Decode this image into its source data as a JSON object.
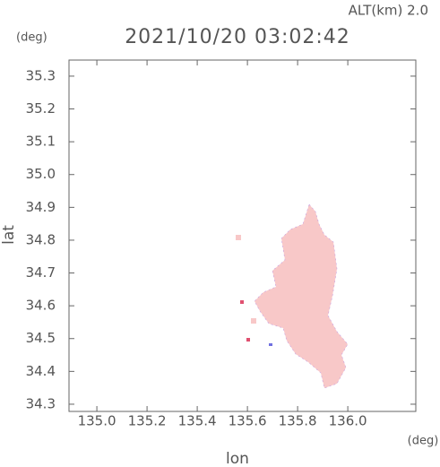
{
  "chart_data": {
    "type": "map",
    "title": "2021/10/20 03:02:42",
    "subtitle": "ALT(km) 2.0",
    "x_label": "lon",
    "y_label": "lat",
    "x_unit": "(deg)",
    "y_unit": "(deg)",
    "xlim": [
      134.889,
      136.271
    ],
    "ylim": [
      34.278,
      35.349
    ],
    "xticks": [
      {
        "value": 135,
        "label": "135.0"
      },
      135.2,
      135.4,
      135.6,
      135.8,
      {
        "value": 136,
        "label": "136.0"
      }
    ],
    "yticks": [
      34.3,
      34.4,
      34.5,
      34.6,
      34.7,
      34.8,
      34.9,
      {
        "value": 35,
        "label": "35.0"
      },
      35.1,
      35.2,
      35.3
    ],
    "color": "#f8c8c8"
  }
}
